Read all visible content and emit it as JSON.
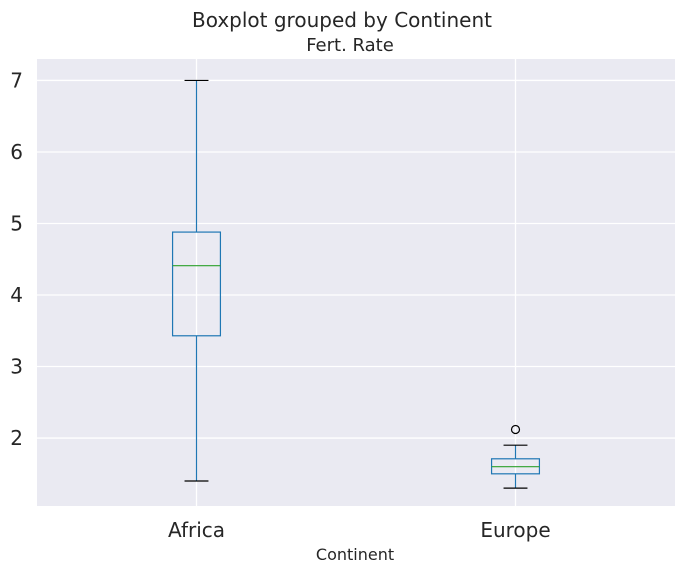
{
  "chart_data": {
    "type": "boxplot",
    "suptitle": "Boxplot grouped by Continent",
    "title": "Fert. Rate",
    "xlabel": "Continent",
    "ylabel": "",
    "categories": [
      "Africa",
      "Europe"
    ],
    "ylim": [
      1.05,
      7.3
    ],
    "yticks": [
      2,
      3,
      4,
      5,
      6,
      7
    ],
    "grid": true,
    "boxes": [
      {
        "category": "Africa",
        "whisker_low": 1.4,
        "q1": 3.43,
        "median": 4.41,
        "q3": 4.88,
        "whisker_high": 7.0,
        "outliers": []
      },
      {
        "category": "Europe",
        "whisker_low": 1.3,
        "q1": 1.5,
        "median": 1.6,
        "q3": 1.71,
        "whisker_high": 1.9,
        "outliers": [
          2.12
        ]
      }
    ],
    "colors": {
      "background": "#eaeaf2",
      "grid": "#ffffff",
      "box": "#1f77b4",
      "median": "#2ca02c",
      "whisker_cap": "#000000",
      "outlier": "#000000"
    }
  }
}
